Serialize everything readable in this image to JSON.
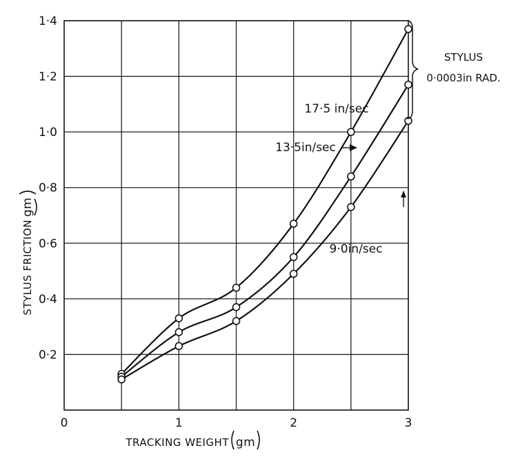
{
  "chart_data": {
    "type": "line",
    "title": "",
    "xlabel": "TRACKING WEIGHT",
    "xlabel_unit": "gm",
    "ylabel": "STYLUS FRICTION",
    "ylabel_unit": "gm",
    "xlim": [
      0,
      3
    ],
    "ylim": [
      0,
      1.4
    ],
    "grid": true,
    "x_ticks": [
      {
        "value": 0,
        "label": "0"
      },
      {
        "value": 1,
        "label": "1"
      },
      {
        "value": 2,
        "label": "2"
      },
      {
        "value": 3,
        "label": "3"
      }
    ],
    "y_ticks": [
      {
        "value": 0.2,
        "label": "0·2"
      },
      {
        "value": 0.4,
        "label": "0·4"
      },
      {
        "value": 0.6,
        "label": "0·6"
      },
      {
        "value": 0.8,
        "label": "0·8"
      },
      {
        "value": 1.0,
        "label": "1·0"
      },
      {
        "value": 1.2,
        "label": "1·2"
      },
      {
        "value": 1.4,
        "label": "1·4"
      }
    ],
    "series": [
      {
        "name": "17·5 in/sec",
        "x": [
          0.5,
          1.0,
          1.5,
          2.0,
          2.5,
          3.0
        ],
        "y": [
          0.13,
          0.33,
          0.44,
          0.67,
          1.0,
          1.37
        ]
      },
      {
        "name": "13·5in/sec",
        "x": [
          0.5,
          1.0,
          1.5,
          2.0,
          2.5,
          3.0
        ],
        "y": [
          0.12,
          0.28,
          0.37,
          0.55,
          0.84,
          1.17
        ]
      },
      {
        "name": "9·0in/sec",
        "x": [
          0.5,
          1.0,
          1.5,
          2.0,
          2.5,
          3.0
        ],
        "y": [
          0.11,
          0.23,
          0.32,
          0.49,
          0.73,
          1.04
        ]
      }
    ],
    "annotations": {
      "stylus_line1": "STYLUS",
      "stylus_line2": "0·0003in RAD."
    }
  }
}
